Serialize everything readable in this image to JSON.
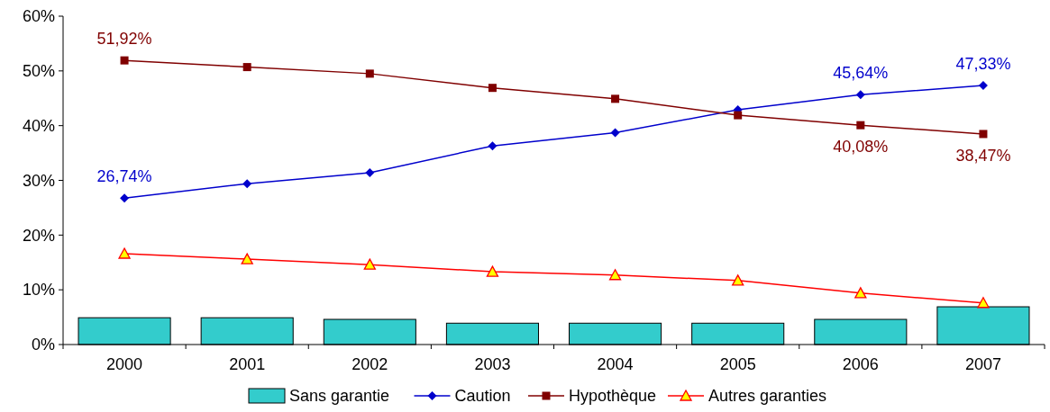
{
  "chart_data": {
    "type": "line",
    "categories": [
      "2000",
      "2001",
      "2002",
      "2003",
      "2004",
      "2005",
      "2006",
      "2007"
    ],
    "ylim": [
      0,
      60
    ],
    "yticks": [
      {
        "value": 0,
        "label": "0%"
      },
      {
        "value": 10,
        "label": "10%"
      },
      {
        "value": 20,
        "label": "20%"
      },
      {
        "value": 30,
        "label": "30%"
      },
      {
        "value": 40,
        "label": "40%"
      },
      {
        "value": 50,
        "label": "50%"
      },
      {
        "value": 60,
        "label": "60%"
      }
    ],
    "grid": false,
    "legend": "bottom",
    "series": [
      {
        "name": "Sans garantie",
        "type": "bar",
        "color": "#33cccc",
        "values": [
          4.9,
          4.9,
          4.6,
          3.9,
          3.9,
          3.9,
          4.6,
          6.9
        ]
      },
      {
        "name": "Caution",
        "color": "#0000cc",
        "marker": "diamond",
        "values": [
          26.74,
          29.4,
          31.4,
          36.3,
          38.7,
          42.9,
          45.64,
          47.33
        ],
        "value_labels": [
          "26,74%",
          null,
          null,
          null,
          null,
          null,
          "45,64%",
          "47,33%"
        ]
      },
      {
        "name": "Hypothèque",
        "color": "#800000",
        "marker": "square",
        "values": [
          51.92,
          50.7,
          49.5,
          46.9,
          44.9,
          41.9,
          40.08,
          38.47
        ],
        "value_labels": [
          "51,92%",
          null,
          null,
          null,
          null,
          null,
          "40,08%",
          "38,47%"
        ]
      },
      {
        "name": "Autres garanties",
        "color": "#ff0000",
        "marker": "triangle",
        "values": [
          16.6,
          15.6,
          14.6,
          13.3,
          12.7,
          11.7,
          9.4,
          7.6
        ]
      }
    ]
  }
}
